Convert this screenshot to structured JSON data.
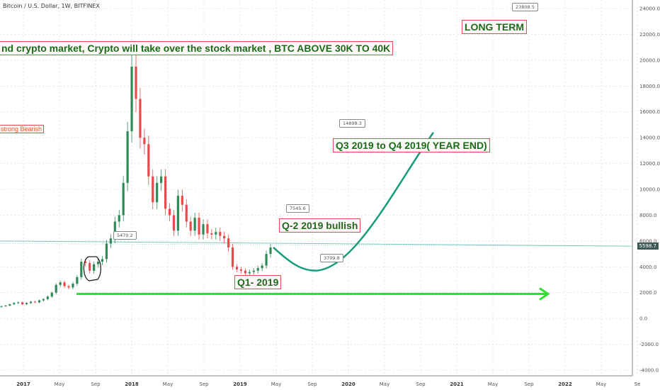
{
  "header": "Bitcoin / U.S. Dollar, 1W, BITFINEX",
  "colors": {
    "up": "#2e8b57",
    "down": "#e84a4a",
    "arrow": "#33dd33",
    "curve": "#169c7a",
    "trend": "#7ec8c0"
  },
  "annotations": {
    "long_term": "LONG TERM",
    "headline": "nd crypto market, Crypto will take over the stock market , BTC ABOVE 30K TO 40K",
    "strong_bearish": "strong Bearish",
    "q3_q4": "Q3 2019 to Q4 2019( YEAR END)",
    "q2": "Q-2 2019 bullish",
    "q1": "Q1- 2019"
  },
  "callouts": {
    "top": "23808.5",
    "q3_target": "14898.3",
    "q2_target": "7545.6",
    "trough": "3709.8",
    "level_2018": "5470.2"
  },
  "price_tag": "5598.7",
  "chart_data": {
    "type": "line",
    "title": "Bitcoin / U.S. Dollar, 1W, BITFINEX",
    "ylim": [
      -4000,
      24000
    ],
    "y_ticks": [
      -4000,
      -2000,
      0,
      2000,
      4000,
      6000,
      8000,
      10000,
      12000,
      14000,
      16000,
      18000,
      20000,
      22000,
      24000
    ],
    "y_tick_labels": [
      "-4000.0",
      "-2000.0",
      "0.0",
      "2000.0",
      "4000.0",
      "6000.0",
      "8000.0",
      "10000.0",
      "12000.0",
      "14000.0",
      "16000.0",
      "18000.0",
      "20000.0",
      "22000.0",
      "24000.0"
    ],
    "x_ticks": [
      "2017",
      "May",
      "Sep",
      "2018",
      "May",
      "Sep",
      "2019",
      "May",
      "Sep",
      "2020",
      "May",
      "Sep",
      "2021",
      "May",
      "Sep",
      "2022",
      "May",
      "Se"
    ],
    "series": [
      {
        "values": [
          950,
          1000,
          1100,
          1200,
          1250,
          1100,
          1200,
          1300,
          1250,
          1400,
          1500,
          1700,
          2000,
          2600,
          2800,
          2500,
          2400,
          2700,
          3200,
          4400,
          4300,
          3700,
          4200,
          4400,
          4600,
          5800,
          6200,
          7500,
          8000,
          10500,
          14500,
          19500,
          17000,
          14000,
          13500,
          11000,
          9000,
          10500,
          11000,
          8500,
          8000,
          6800,
          9500,
          8800,
          7500,
          6800,
          7800,
          6500,
          7300,
          6600,
          6500,
          6700,
          6400,
          6200,
          5500,
          4000,
          3800,
          3700,
          3500,
          3600,
          3700,
          3900,
          4100,
          5000,
          5500
        ]
      }
    ],
    "levels": {
      "support": 1900,
      "trendline_start": 6000,
      "trendline_end": 5598.7
    },
    "projection": {
      "from": 5500,
      "trough": 3709.8,
      "target": 14898.3
    }
  }
}
